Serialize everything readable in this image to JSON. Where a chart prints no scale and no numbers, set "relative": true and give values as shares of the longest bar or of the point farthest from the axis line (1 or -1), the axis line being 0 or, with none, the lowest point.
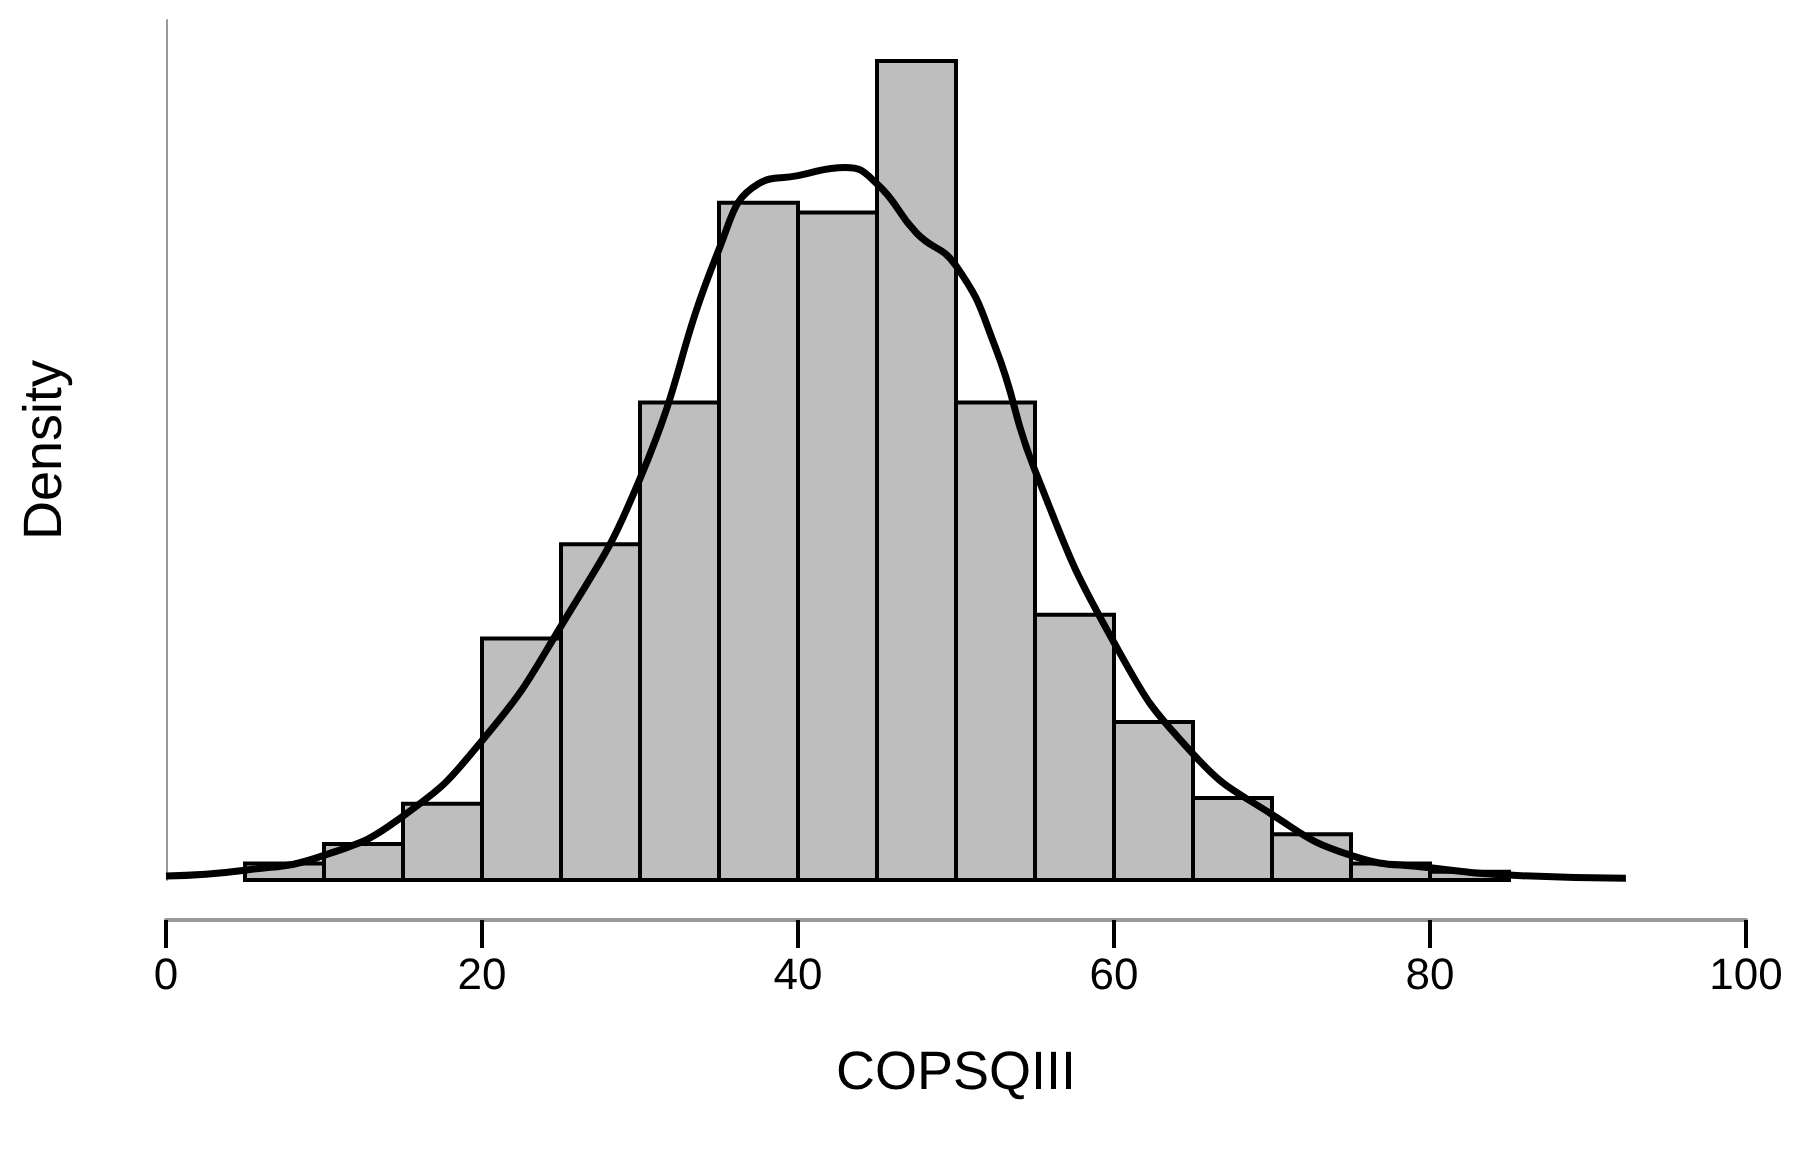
{
  "chart_data": {
    "type": "histogram",
    "xlabel": "COPSQIII",
    "ylabel": "Density",
    "relative": true,
    "tick_labels": "x",
    "xlim": [
      0,
      100
    ],
    "xticks": [
      0,
      20,
      40,
      60,
      80,
      100
    ],
    "series": [
      {
        "color": "#bebebe",
        "bins": [
          0,
          5,
          10,
          15,
          20,
          25,
          30,
          35,
          40,
          45,
          50,
          55,
          60,
          65,
          70,
          75,
          80,
          85
        ],
        "values": [
          null,
          0.02,
          0.044,
          0.093,
          0.295,
          0.41,
          0.583,
          0.827,
          0.815,
          1,
          0.583,
          0.324,
          0.193,
          0.1,
          0.056,
          0.02,
          0.01
        ]
      },
      {
        "type": "line",
        "color": "#000000",
        "x": [
          0,
          5,
          10,
          15,
          20,
          25,
          30,
          35,
          37.5,
          40,
          43,
          45,
          47.5,
          50,
          52.5,
          55,
          60,
          65,
          70,
          75,
          80,
          85,
          92.4
        ],
        "values": [
          0.005,
          0.012,
          0.03,
          0.078,
          0.17,
          0.31,
          0.49,
          0.77,
          0.85,
          0.86,
          0.87,
          0.85,
          0.79,
          0.75,
          0.65,
          0.5,
          0.29,
          0.154,
          0.08,
          0.03,
          0.015,
          0.006,
          0.002
        ]
      }
    ]
  }
}
